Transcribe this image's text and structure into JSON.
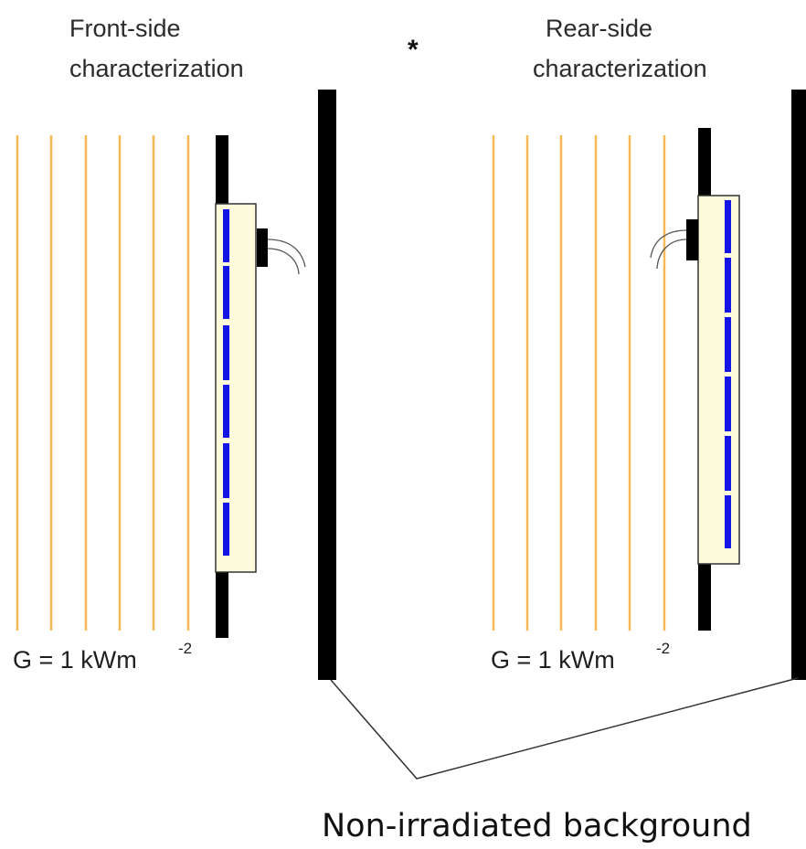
{
  "front": {
    "title_line1": "Front-side",
    "title_line2": "characterization",
    "irradiance_prefix": "G = 1 kWm",
    "irradiance_exponent": "-2"
  },
  "rear": {
    "title_line1": "Rear-side",
    "title_line2": "characterization",
    "irradiance_prefix": "G = 1 kWm",
    "irradiance_exponent": "-2"
  },
  "marker": "*",
  "background_label": "Non-irradiated background",
  "colors": {
    "light_ray": "#f7b955",
    "module_frame": "#fbfbdc",
    "cell": "#1414e6",
    "mount": "#000000",
    "connector_line": "#333333"
  }
}
